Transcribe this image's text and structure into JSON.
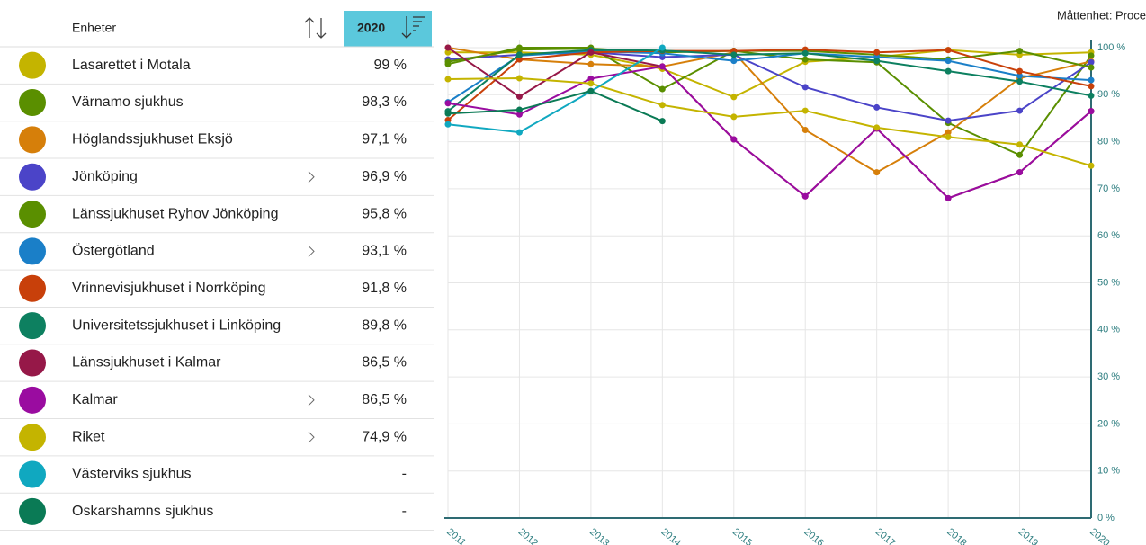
{
  "table": {
    "header": {
      "units": "Enheter",
      "year": "2020"
    },
    "rows": [
      {
        "value": "99 %",
        "expandable": false
      },
      {
        "value": "98,3 %",
        "expandable": false
      },
      {
        "value": "97,1 %",
        "expandable": false
      },
      {
        "value": "96,9 %",
        "expandable": true
      },
      {
        "value": "95,8 %",
        "expandable": false
      },
      {
        "value": "93,1 %",
        "expandable": true
      },
      {
        "value": "91,8 %",
        "expandable": false
      },
      {
        "value": "89,8 %",
        "expandable": false
      },
      {
        "value": "86,5 %",
        "expandable": false
      },
      {
        "value": "86,5 %",
        "expandable": true
      },
      {
        "value": "74,9 %",
        "expandable": true
      },
      {
        "value": "-",
        "expandable": false
      },
      {
        "value": "-",
        "expandable": false
      }
    ]
  },
  "chart_data": {
    "type": "line",
    "unit_note": "Måttenhet: Proce",
    "categories": [
      "2011",
      "2012",
      "2013",
      "2014",
      "2015",
      "2016",
      "2017",
      "2018",
      "2019",
      "2020"
    ],
    "ylim": [
      0,
      100
    ],
    "yticks": [
      {
        "value": 0,
        "label": "0 %"
      },
      {
        "value": 10,
        "label": "10 %"
      },
      {
        "value": 20,
        "label": "20 %"
      },
      {
        "value": 30,
        "label": "30 %"
      },
      {
        "value": 40,
        "label": "40 %"
      },
      {
        "value": 50,
        "label": "50 %"
      },
      {
        "value": 60,
        "label": "60 %"
      },
      {
        "value": 70,
        "label": "70 %"
      },
      {
        "value": 80,
        "label": "80 %"
      },
      {
        "value": 90,
        "label": "90 %"
      },
      {
        "value": 100,
        "label": "100 %"
      }
    ],
    "grid": true,
    "series": [
      {
        "name": "Lasarettet i Motala",
        "color": "#c4b400",
        "values": [
          99,
          99,
          98.5,
          95.5,
          89.5,
          97,
          98,
          99.5,
          98.5,
          99
        ]
      },
      {
        "name": "Värnamo sjukhus",
        "color": "#5a8f00",
        "values": [
          96.5,
          100,
          100,
          91.2,
          99.3,
          97.5,
          96.9,
          84,
          77.2,
          98.3
        ]
      },
      {
        "name": "Höglandssjukhuset Eksjö",
        "color": "#d67f0a",
        "values": [
          100,
          97.5,
          96.5,
          96,
          99,
          82.5,
          73.5,
          82,
          93.5,
          97.1
        ]
      },
      {
        "name": "Jönköping",
        "color": "#4b44c8",
        "values": [
          97.5,
          98.5,
          99,
          98,
          98.5,
          91.6,
          87.3,
          84.5,
          86.6,
          96.9
        ]
      },
      {
        "name": "Länssjukhuset Ryhov Jönköping",
        "color": "#5a8f00",
        "values": [
          97,
          99.6,
          99.8,
          99,
          99.3,
          99.3,
          98.5,
          97.5,
          99.3,
          95.8
        ]
      },
      {
        "name": "Östergötland",
        "color": "#1a7fc8",
        "values": [
          88.4,
          98.3,
          99.2,
          98.8,
          97.2,
          98.8,
          98,
          97.2,
          94,
          93.1
        ]
      },
      {
        "name": "Vrinnevisjukhuset i Norrköping",
        "color": "#c8400a",
        "values": [
          84.6,
          97.5,
          99,
          99.3,
          99.3,
          99.6,
          99,
          99.5,
          95,
          91.8
        ]
      },
      {
        "name": "Universitetssjukhuset i Linköping",
        "color": "#0d8060",
        "values": [
          86.5,
          98.5,
          99.5,
          99.4,
          98.5,
          98.8,
          97.2,
          95,
          92.8,
          89.8
        ]
      },
      {
        "name": "Länssjukhuset i Kalmar",
        "color": "#961848",
        "values": [
          100,
          89.6,
          99,
          96,
          80.5,
          68.4,
          82.8,
          68,
          73.5,
          86.5
        ]
      },
      {
        "name": "Kalmar",
        "color": "#9a0ca0",
        "values": [
          88.2,
          85.8,
          93.4,
          96,
          80.5,
          68.4,
          82.8,
          68,
          73.5,
          86.5
        ]
      },
      {
        "name": "Riket",
        "color": "#c4b400",
        "values": [
          93.3,
          93.5,
          92.4,
          87.8,
          85.3,
          86.6,
          83,
          81,
          79.4,
          74.9
        ]
      },
      {
        "name": "Västerviks sjukhus",
        "color": "#10a8c0",
        "values": [
          83.7,
          82,
          90.7,
          100,
          null,
          null,
          null,
          null,
          null,
          null
        ]
      },
      {
        "name": "Oskarshamns sjukhus",
        "color": "#0a7a55",
        "values": [
          86,
          86.8,
          90.8,
          84.4,
          null,
          null,
          null,
          null,
          null,
          null
        ]
      }
    ]
  }
}
